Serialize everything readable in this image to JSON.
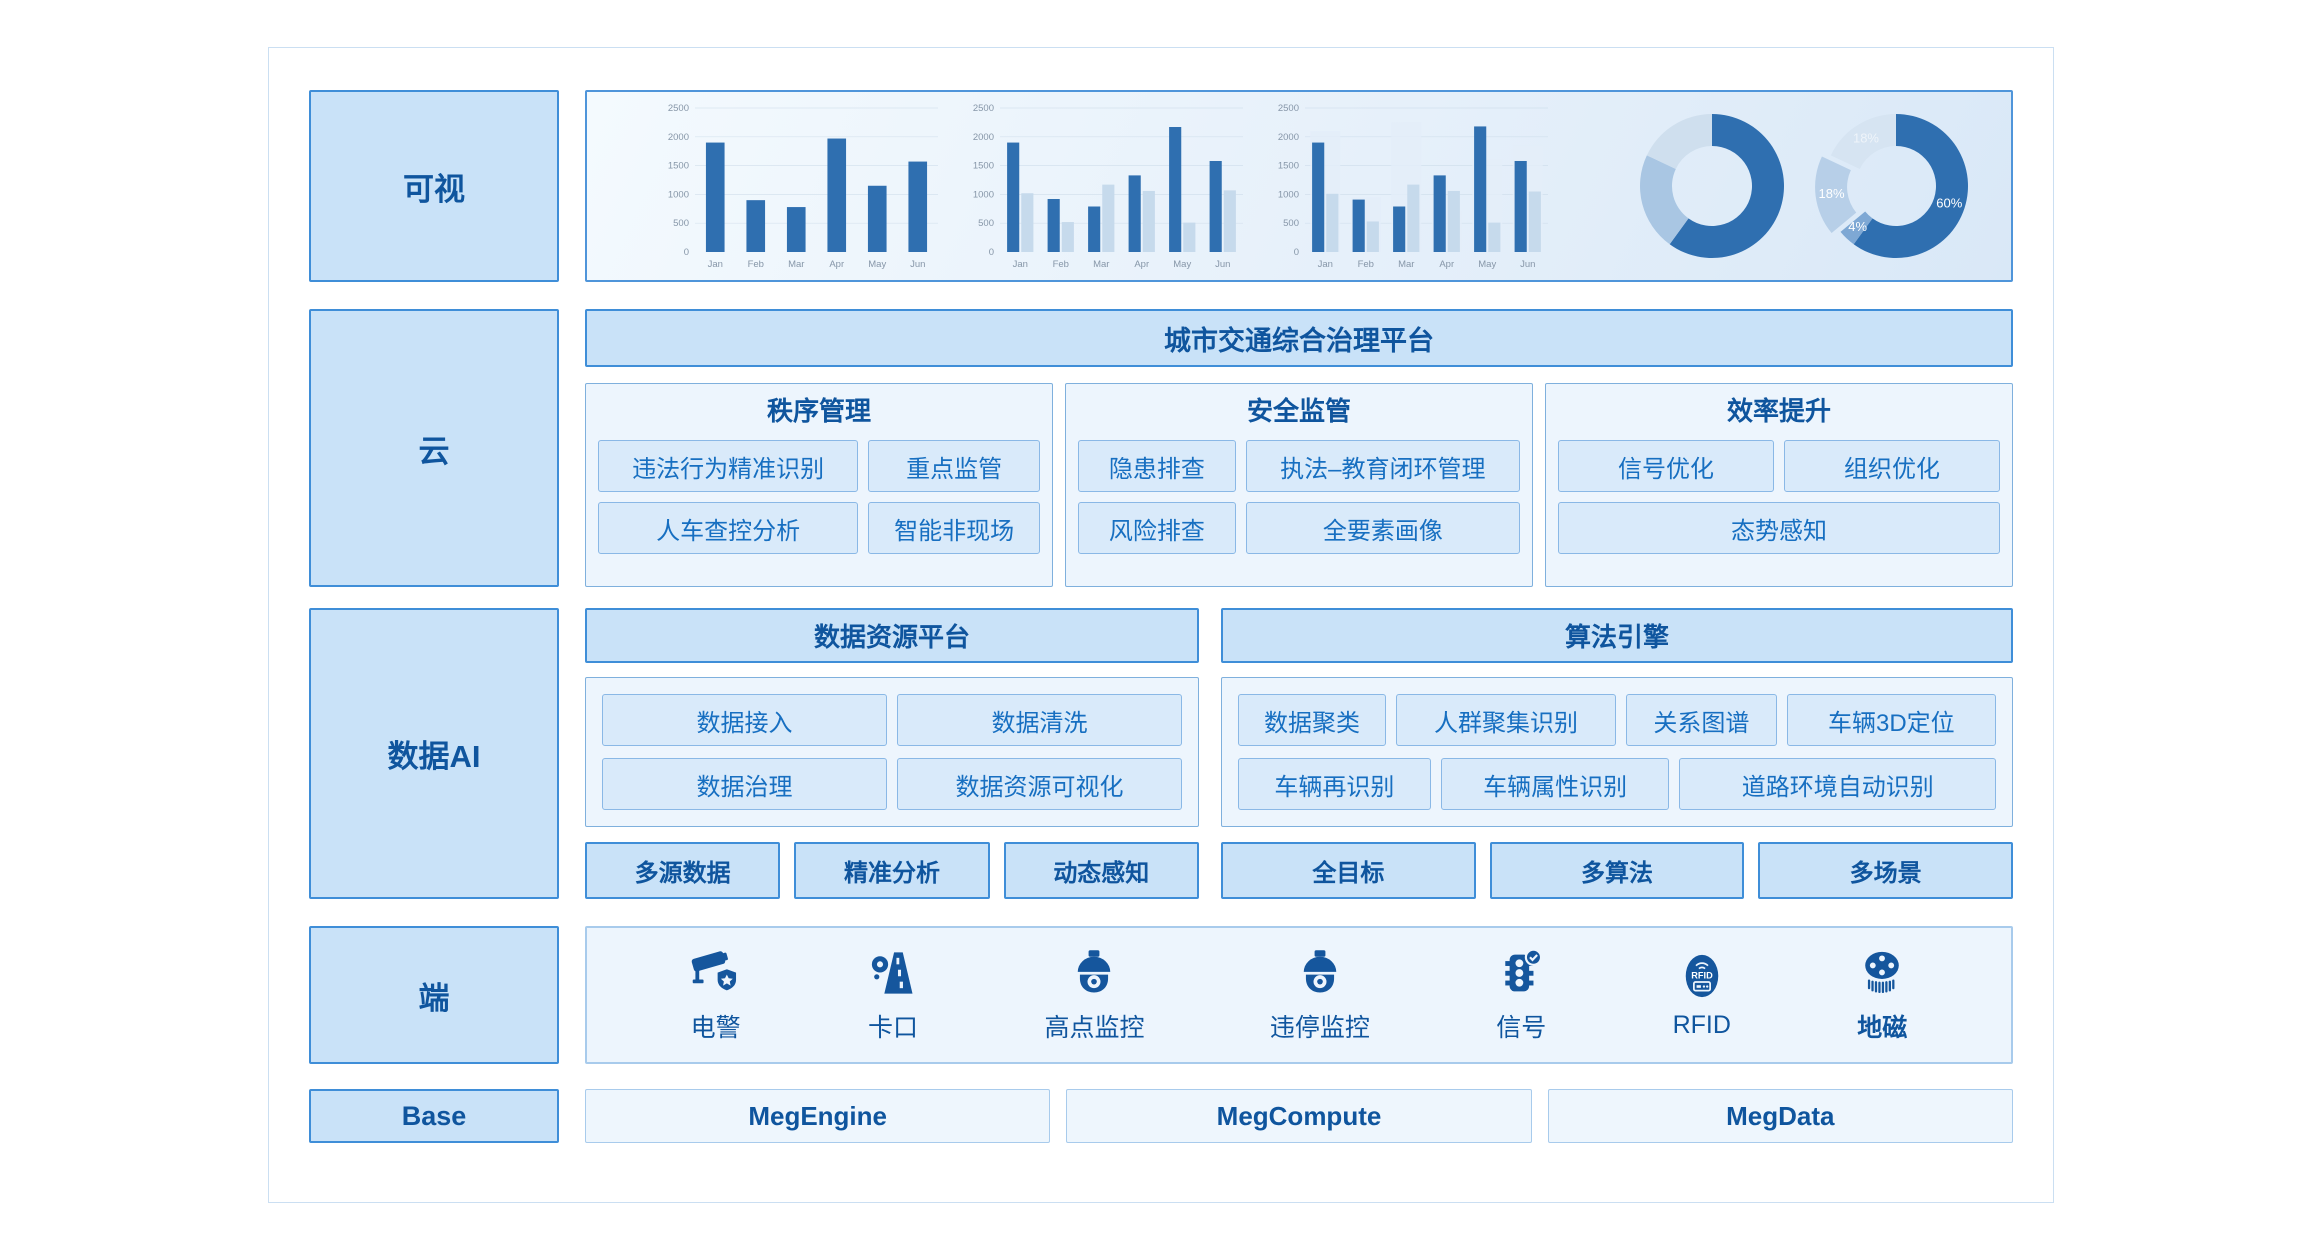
{
  "colors": {
    "accent_border": "#3f8ed8",
    "medium_fill": "#c9e2f8",
    "panel_fill": "#edf5fd",
    "button_fill": "#d9eafa",
    "text_primary": "#0f559e",
    "button_text": "#176fc1",
    "bar_dark": "#2f6fb0",
    "bar_light": "#c6daec",
    "icon_blue": "#15569d"
  },
  "layers": {
    "visual": {
      "label": "可视"
    },
    "cloud": {
      "label": "云",
      "platform_bar": "城市交通综合治理平台",
      "sections": [
        {
          "title": "秩序管理",
          "buttons": [
            "违法行为精准识别",
            "重点监管",
            "人车查控分析",
            "智能非现场"
          ]
        },
        {
          "title": "安全监管",
          "buttons": [
            "隐患排查",
            "执法–教育闭环管理",
            "风险排查",
            "全要素画像"
          ]
        },
        {
          "title": "效率提升",
          "buttons": [
            "信号优化",
            "组织优化",
            "态势感知"
          ]
        }
      ]
    },
    "data_ai": {
      "label": "数据AI",
      "data_platform": {
        "title": "数据资源平台",
        "buttons": [
          "数据接入",
          "数据清洗",
          "数据治理",
          "数据资源可视化"
        ],
        "tags": [
          "多源数据",
          "精准分析",
          "动态感知"
        ]
      },
      "algo_engine": {
        "title": "算法引擎",
        "buttons": [
          "数据聚类",
          "人群聚集识别",
          "关系图谱",
          "车辆3D定位",
          "车辆再识别",
          "车辆属性识别",
          "道路环境自动识别"
        ],
        "tags": [
          "全目标",
          "多算法",
          "多场景"
        ]
      }
    },
    "edge": {
      "label": "端",
      "devices": [
        {
          "name": "电警",
          "icon": "cctv-camera-shield-icon"
        },
        {
          "name": "卡口",
          "icon": "checkpoint-road-icon"
        },
        {
          "name": "高点监控",
          "icon": "dome-camera-icon"
        },
        {
          "name": "违停监控",
          "icon": "dome-camera-icon"
        },
        {
          "name": "信号",
          "icon": "traffic-light-check-icon"
        },
        {
          "name": "RFID",
          "icon": "rfid-tag-icon",
          "icon_text": "RFID"
        },
        {
          "name": "地磁",
          "icon": "magnetometer-coil-icon",
          "bold": true
        }
      ]
    },
    "base": {
      "label": "Base",
      "items": [
        "MegEngine",
        "MegCompute",
        "MegData"
      ]
    }
  },
  "chart_data": [
    {
      "type": "bar",
      "x": [
        "Jan",
        "Feb",
        "Mar",
        "Apr",
        "May",
        "Jun"
      ],
      "series": [
        {
          "name": "series-1",
          "color": "#2f6fb0",
          "values": [
            1900,
            900,
            780,
            1970,
            1150,
            1570
          ]
        }
      ],
      "ylim": [
        0,
        2500
      ],
      "yticks": [
        0,
        500,
        1000,
        1500,
        2000,
        2500
      ],
      "grid": true,
      "legend": false
    },
    {
      "type": "bar",
      "x": [
        "Jan",
        "Feb",
        "Mar",
        "Apr",
        "May",
        "Jun"
      ],
      "series": [
        {
          "name": "series-1",
          "color": "#2f6fb0",
          "values": [
            1900,
            920,
            790,
            1330,
            2170,
            1580
          ]
        },
        {
          "name": "series-2",
          "color": "#c6daec",
          "values": [
            1020,
            520,
            1170,
            1060,
            510,
            1070
          ]
        }
      ],
      "ylim": [
        0,
        2500
      ],
      "yticks": [
        0,
        500,
        1000,
        1500,
        2000,
        2500
      ],
      "grid": true,
      "legend": false
    },
    {
      "type": "bar",
      "x": [
        "Jan",
        "Feb",
        "Mar",
        "Apr",
        "May",
        "Jun"
      ],
      "series": [
        {
          "name": "series-1",
          "color": "#2f6fb0",
          "values": [
            1900,
            910,
            790,
            1330,
            2180,
            1580
          ]
        },
        {
          "name": "series-2",
          "color": "#c6daec",
          "values": [
            1010,
            530,
            1170,
            1060,
            510,
            1050
          ]
        }
      ],
      "background_values": [
        2100,
        950,
        2250,
        700,
        1600,
        1850
      ],
      "background_color": "#e4eef9",
      "ylim": [
        0,
        2500
      ],
      "yticks": [
        0,
        500,
        1000,
        1500,
        2000,
        2500
      ],
      "grid": true,
      "legend": false
    },
    {
      "type": "donut",
      "slices": [
        {
          "value": 60,
          "color": "#2f6fb0"
        },
        {
          "value": 22,
          "color": "#a9c6e3"
        },
        {
          "value": 18,
          "color": "#cfdfee"
        }
      ]
    },
    {
      "type": "donut",
      "slices": [
        {
          "value": 60,
          "label": "60%",
          "color": "#2f6fb0"
        },
        {
          "value": 4,
          "label": "4%",
          "color": "#7ea8d4"
        },
        {
          "value": 18,
          "label": "18%",
          "color": "#b7cfe8",
          "explode": true
        },
        {
          "value": 18,
          "label": "18%",
          "color": "#d6e4f2",
          "faint_label": true
        }
      ]
    }
  ]
}
